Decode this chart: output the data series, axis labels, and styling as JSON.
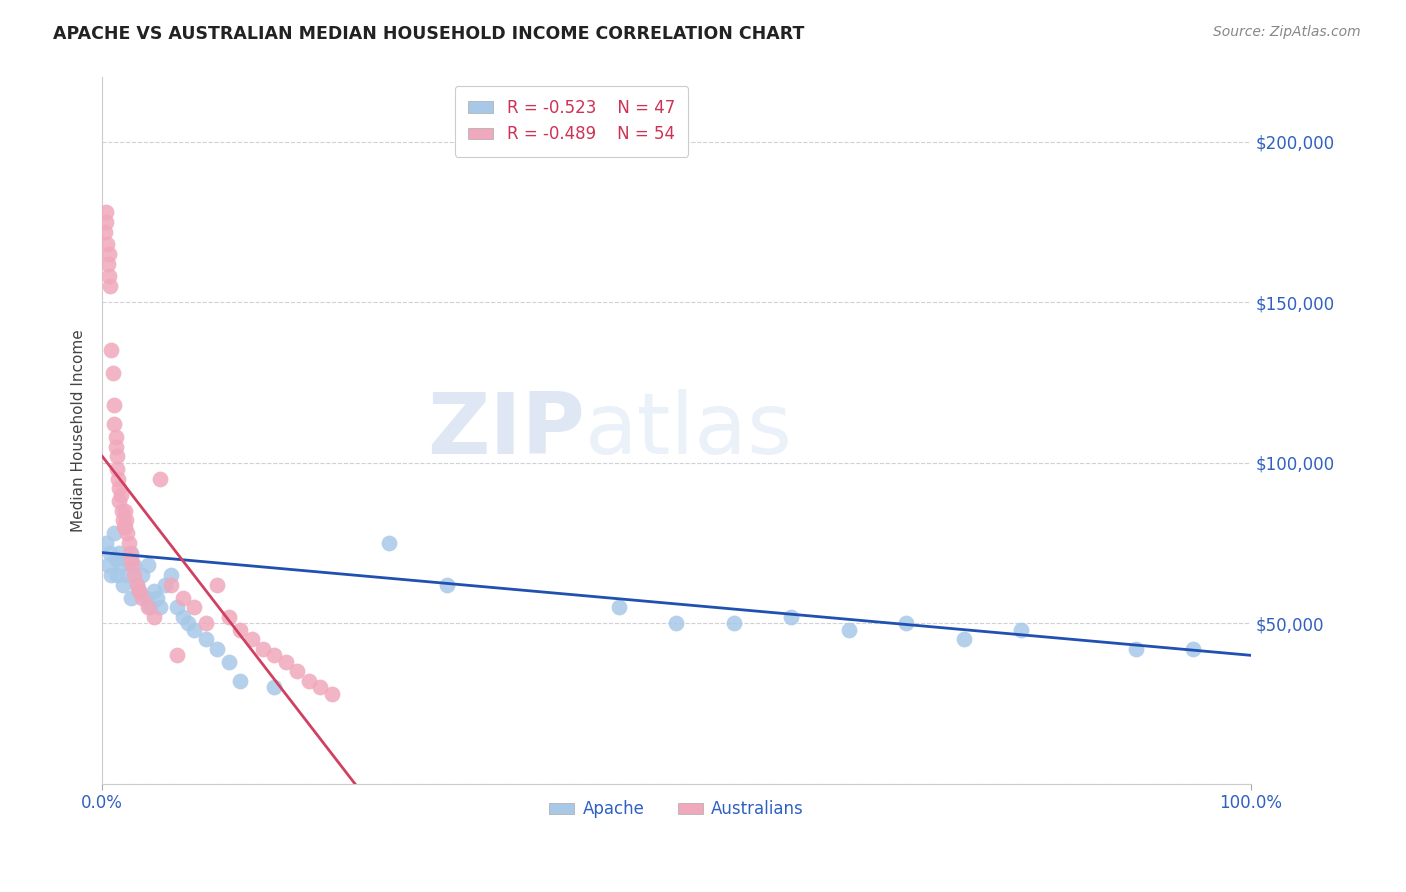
{
  "title": "APACHE VS AUSTRALIAN MEDIAN HOUSEHOLD INCOME CORRELATION CHART",
  "source": "Source: ZipAtlas.com",
  "ylabel": "Median Household Income",
  "xlim": [
    0,
    1.0
  ],
  "ylim": [
    0,
    220000
  ],
  "yticks": [
    0,
    50000,
    100000,
    150000,
    200000
  ],
  "ytick_labels": [
    "",
    "$50,000",
    "$100,000",
    "$150,000",
    "$200,000"
  ],
  "xtick_labels": [
    "0.0%",
    "100.0%"
  ],
  "bg_color": "#ffffff",
  "grid_color": "#d0d0d8",
  "apache_color": "#a8c8e8",
  "australian_color": "#f0a8bc",
  "apache_line_color": "#2050b0",
  "australian_line_color": "#d04060",
  "legend_apache_r": "-0.523",
  "legend_apache_n": "47",
  "legend_australian_r": "-0.489",
  "legend_australian_n": "54",
  "apache_x": [
    0.003,
    0.005,
    0.007,
    0.008,
    0.01,
    0.012,
    0.013,
    0.015,
    0.016,
    0.018,
    0.02,
    0.022,
    0.025,
    0.025,
    0.028,
    0.03,
    0.032,
    0.035,
    0.038,
    0.04,
    0.042,
    0.045,
    0.048,
    0.05,
    0.055,
    0.06,
    0.065,
    0.07,
    0.075,
    0.08,
    0.09,
    0.1,
    0.11,
    0.12,
    0.15,
    0.25,
    0.3,
    0.45,
    0.5,
    0.55,
    0.6,
    0.65,
    0.7,
    0.75,
    0.8,
    0.9,
    0.95
  ],
  "apache_y": [
    75000,
    68000,
    72000,
    65000,
    78000,
    70000,
    65000,
    72000,
    68000,
    62000,
    70000,
    65000,
    72000,
    58000,
    68000,
    62000,
    60000,
    65000,
    58000,
    68000,
    55000,
    60000,
    58000,
    55000,
    62000,
    65000,
    55000,
    52000,
    50000,
    48000,
    45000,
    42000,
    38000,
    32000,
    30000,
    75000,
    62000,
    55000,
    50000,
    50000,
    52000,
    48000,
    50000,
    45000,
    48000,
    42000,
    42000
  ],
  "australian_x": [
    0.002,
    0.003,
    0.003,
    0.004,
    0.005,
    0.006,
    0.006,
    0.007,
    0.008,
    0.009,
    0.01,
    0.01,
    0.012,
    0.012,
    0.013,
    0.013,
    0.014,
    0.015,
    0.015,
    0.016,
    0.017,
    0.018,
    0.019,
    0.02,
    0.02,
    0.021,
    0.022,
    0.023,
    0.024,
    0.025,
    0.026,
    0.028,
    0.03,
    0.032,
    0.035,
    0.04,
    0.045,
    0.05,
    0.06,
    0.065,
    0.07,
    0.08,
    0.09,
    0.1,
    0.11,
    0.12,
    0.13,
    0.14,
    0.15,
    0.16,
    0.17,
    0.18,
    0.19,
    0.2
  ],
  "australian_y": [
    172000,
    178000,
    175000,
    168000,
    162000,
    158000,
    165000,
    155000,
    135000,
    128000,
    118000,
    112000,
    108000,
    105000,
    102000,
    98000,
    95000,
    92000,
    88000,
    90000,
    85000,
    82000,
    80000,
    80000,
    85000,
    82000,
    78000,
    75000,
    72000,
    70000,
    68000,
    65000,
    62000,
    60000,
    58000,
    55000,
    52000,
    95000,
    62000,
    40000,
    58000,
    55000,
    50000,
    62000,
    52000,
    48000,
    45000,
    42000,
    40000,
    38000,
    35000,
    32000,
    30000,
    28000
  ],
  "apache_trend_x": [
    0.0,
    1.0
  ],
  "apache_trend_y": [
    72000,
    40000
  ],
  "australian_trend_x": [
    0.0,
    0.22
  ],
  "australian_trend_y": [
    102000,
    0
  ]
}
